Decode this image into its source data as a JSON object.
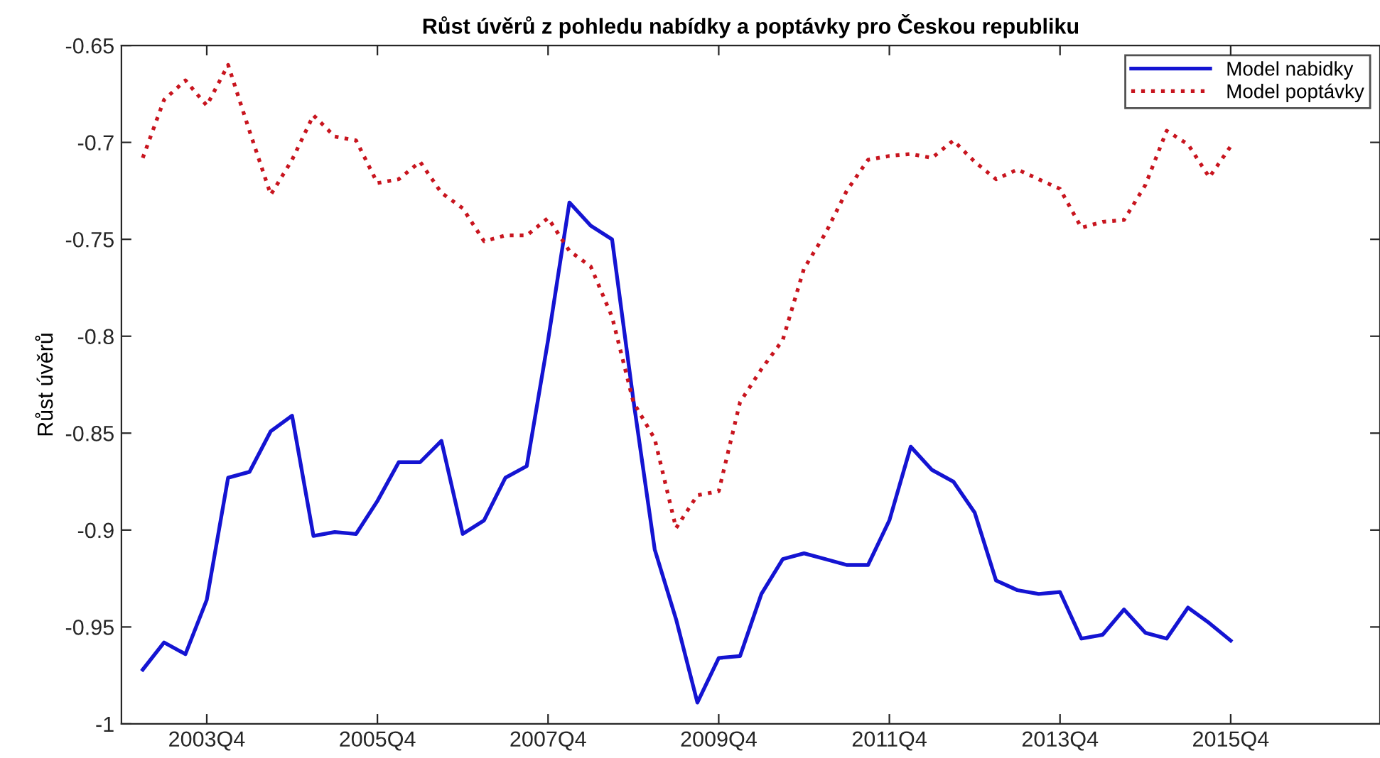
{
  "chart_data": {
    "type": "line",
    "title": "Růst úvěrů z pohledu nabídky a poptávky pro Českou republiku",
    "ylabel": "Růst úvěrů",
    "categories": [
      null,
      null,
      null,
      "2003Q4",
      null,
      null,
      null,
      null,
      null,
      null,
      null,
      "2005Q4",
      null,
      null,
      null,
      null,
      null,
      null,
      null,
      "2007Q4",
      null,
      null,
      null,
      null,
      null,
      null,
      null,
      "2009Q4",
      null,
      null,
      null,
      null,
      null,
      null,
      null,
      "2011Q4",
      null,
      null,
      null,
      null,
      null,
      null,
      null,
      "2013Q4",
      null,
      null,
      null,
      null,
      null,
      null,
      null,
      "2015Q4"
    ],
    "series": [
      {
        "name": "Model nabidky",
        "color": "#1414d2",
        "line_style": "solid",
        "values": [
          -0.972,
          -0.958,
          -0.964,
          -0.936,
          -0.873,
          -0.87,
          -0.849,
          -0.841,
          -0.903,
          -0.901,
          -0.902,
          -0.885,
          -0.865,
          -0.865,
          -0.854,
          -0.902,
          -0.895,
          -0.873,
          -0.867,
          -0.802,
          -0.731,
          -0.743,
          -0.75,
          -0.833,
          -0.91,
          -0.946,
          -0.989,
          -0.966,
          -0.965,
          -0.933,
          -0.915,
          -0.912,
          -0.915,
          -0.918,
          -0.918,
          -0.895,
          -0.857,
          -0.869,
          -0.875,
          -0.891,
          -0.926,
          -0.931,
          -0.933,
          -0.932,
          -0.956,
          -0.954,
          -0.941,
          -0.953,
          -0.956,
          -0.94,
          -0.948,
          -0.957
        ]
      },
      {
        "name": "Model poptávky",
        "color": "#c8141e",
        "line_style": "dotted",
        "values": [
          -0.708,
          -0.678,
          -0.668,
          -0.681,
          -0.66,
          -0.694,
          -0.727,
          -0.709,
          -0.686,
          -0.697,
          -0.699,
          -0.721,
          -0.719,
          -0.71,
          -0.726,
          -0.734,
          -0.751,
          -0.748,
          -0.748,
          -0.739,
          -0.756,
          -0.764,
          -0.79,
          -0.834,
          -0.853,
          -0.899,
          -0.882,
          -0.88,
          -0.834,
          -0.817,
          -0.802,
          -0.765,
          -0.747,
          -0.725,
          -0.709,
          -0.707,
          -0.706,
          -0.708,
          -0.699,
          -0.71,
          -0.719,
          -0.714,
          -0.719,
          -0.724,
          -0.744,
          -0.741,
          -0.74,
          -0.722,
          -0.694,
          -0.701,
          -0.718,
          -0.702
        ]
      }
    ],
    "ylim": [
      -1,
      -0.65
    ],
    "yticks": [
      -1,
      -0.95,
      -0.9,
      -0.85,
      -0.8,
      -0.75,
      -0.7,
      -0.65
    ],
    "grid": false,
    "legend": "top right",
    "marker": "none"
  }
}
